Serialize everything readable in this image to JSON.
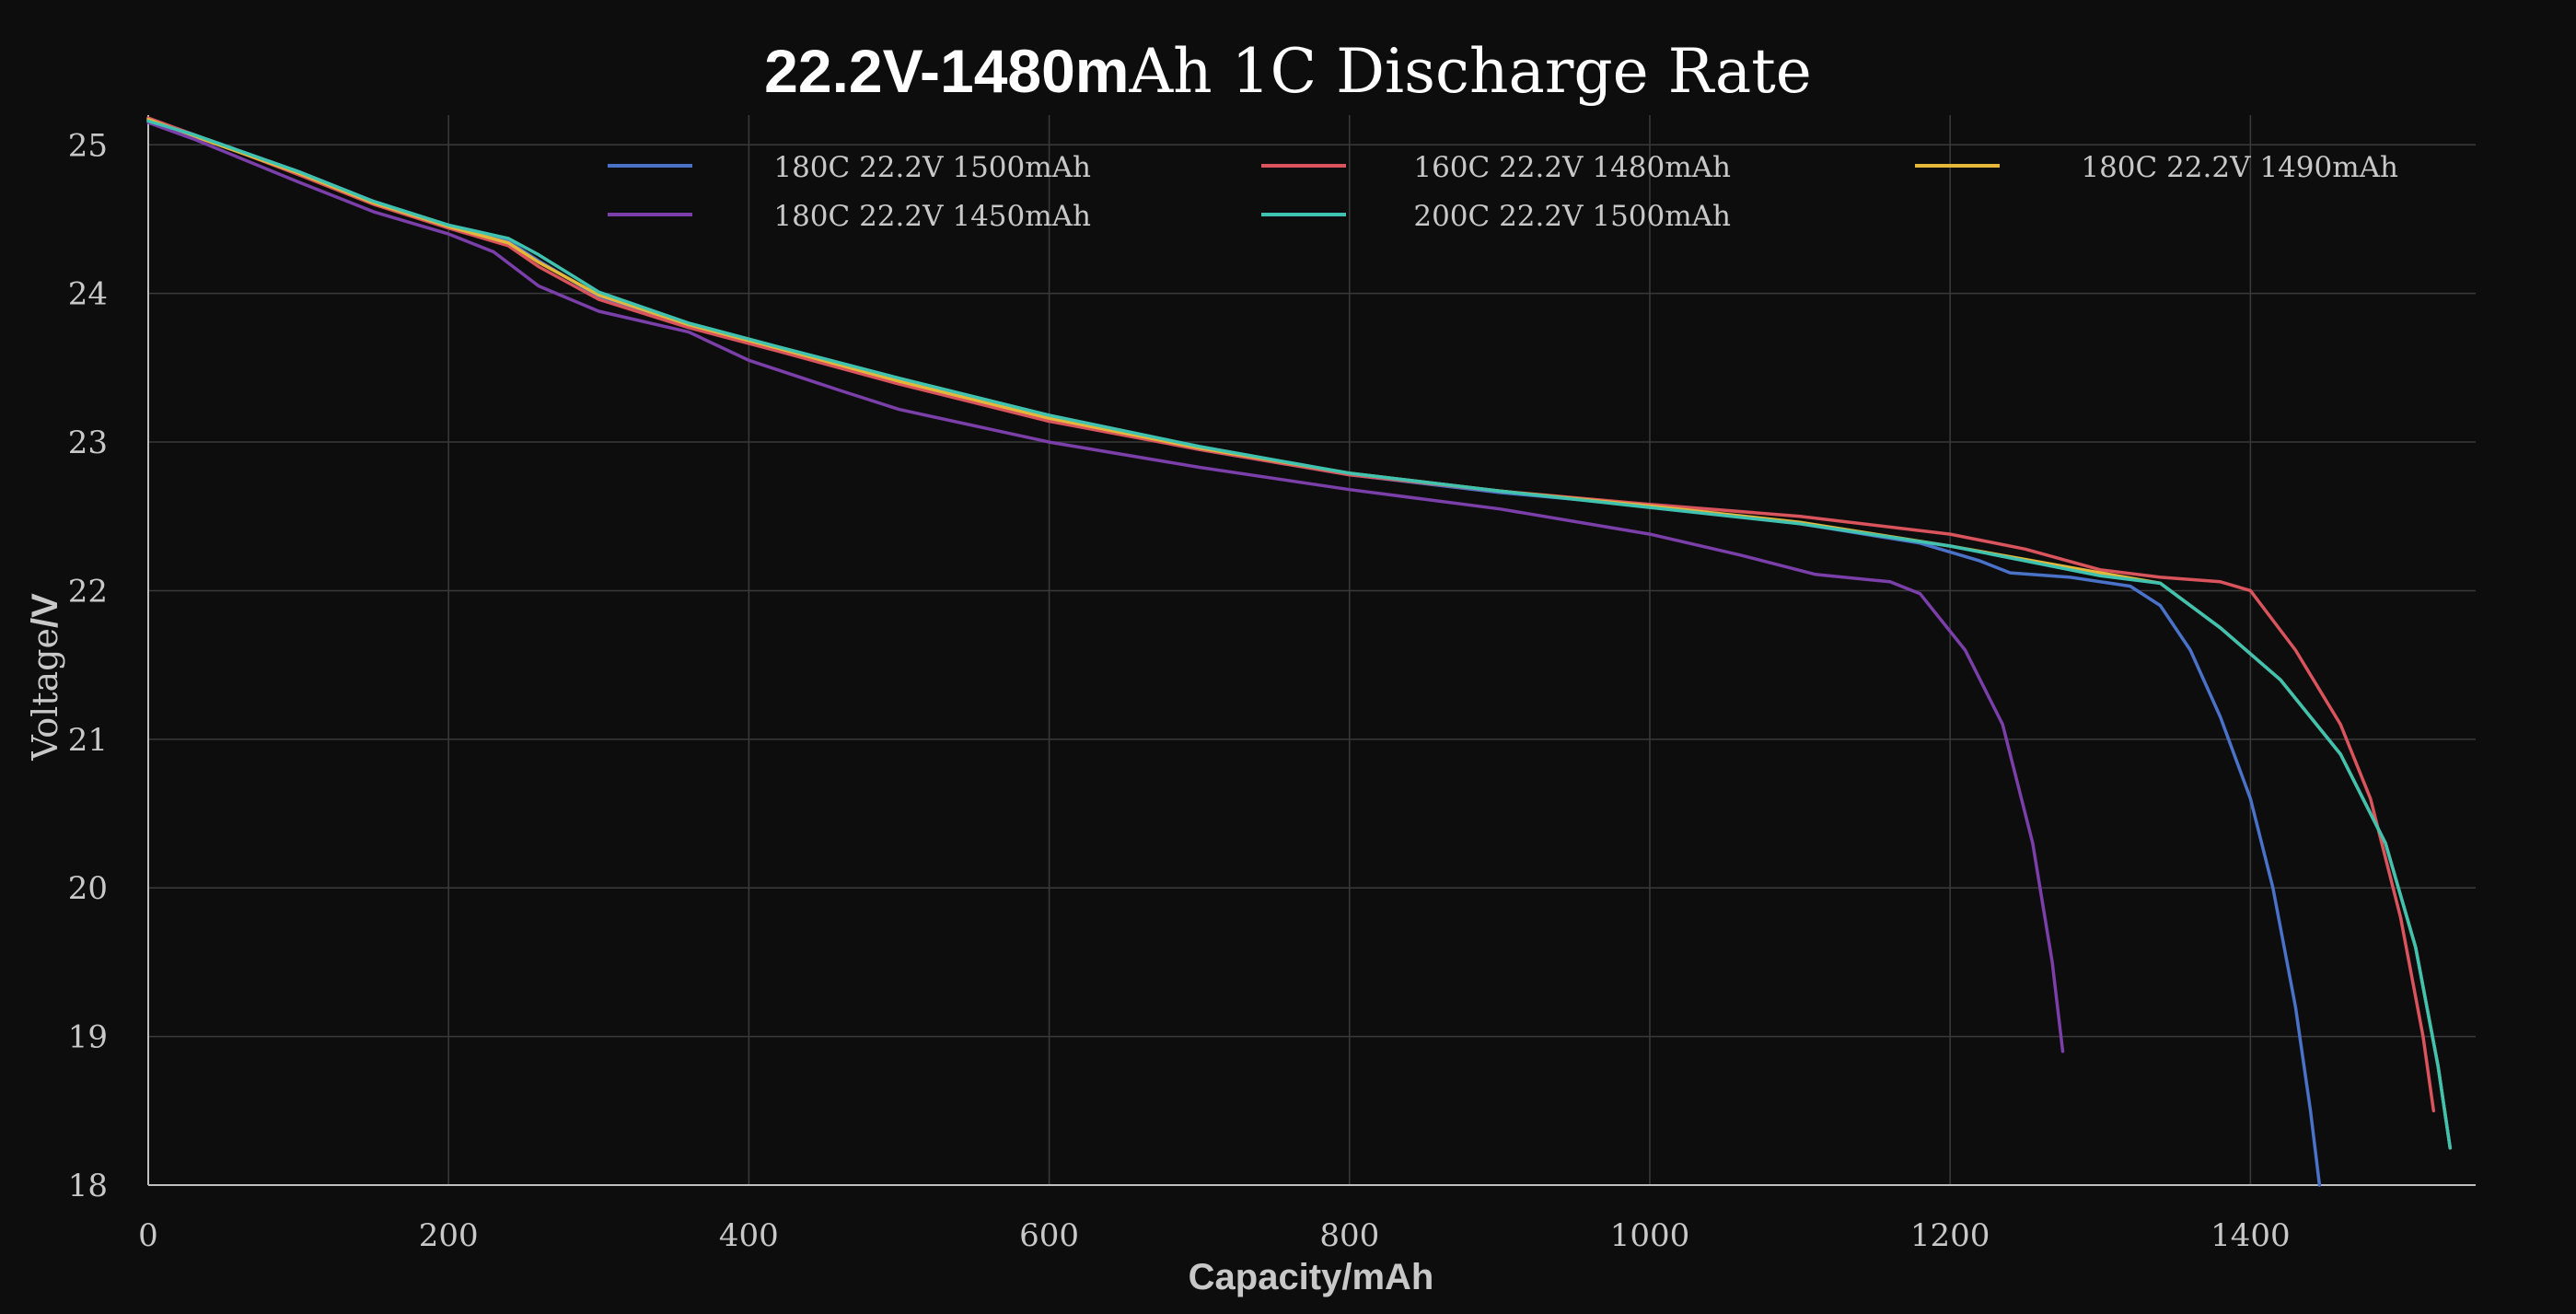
{
  "chart_data": {
    "type": "line",
    "title": {
      "bold": "22.2V-1480m",
      "rest": "Ah 1C Discharge Rate"
    },
    "xlabel": "Capacity/mAh",
    "ylabel": {
      "a": "Voltage",
      "b": "/V"
    },
    "xlim": [
      0,
      1550
    ],
    "ylim": [
      18,
      25.2
    ],
    "xticks": [
      0,
      200,
      400,
      600,
      800,
      1000,
      1200,
      1400
    ],
    "yticks": [
      18,
      19,
      20,
      21,
      22,
      23,
      24,
      25
    ],
    "grid": true,
    "legend_position": "top",
    "series": [
      {
        "name": "180C 22.2V 1500mAh",
        "color": "#4a72c9",
        "points": [
          [
            0,
            25.18
          ],
          [
            30,
            25.07
          ],
          [
            100,
            24.82
          ],
          [
            150,
            24.62
          ],
          [
            200,
            24.45
          ],
          [
            240,
            24.35
          ],
          [
            260,
            24.22
          ],
          [
            300,
            23.98
          ],
          [
            360,
            23.78
          ],
          [
            420,
            23.62
          ],
          [
            500,
            23.4
          ],
          [
            600,
            23.15
          ],
          [
            700,
            22.95
          ],
          [
            800,
            22.78
          ],
          [
            900,
            22.66
          ],
          [
            1000,
            22.57
          ],
          [
            1100,
            22.45
          ],
          [
            1180,
            22.32
          ],
          [
            1220,
            22.2
          ],
          [
            1240,
            22.12
          ],
          [
            1280,
            22.09
          ],
          [
            1320,
            22.03
          ],
          [
            1340,
            21.9
          ],
          [
            1360,
            21.6
          ],
          [
            1380,
            21.15
          ],
          [
            1400,
            20.6
          ],
          [
            1415,
            20.0
          ],
          [
            1430,
            19.2
          ],
          [
            1440,
            18.5
          ],
          [
            1446,
            18.0
          ]
        ]
      },
      {
        "name": "160C 22.2V 1480mAh",
        "color": "#d9545c",
        "points": [
          [
            0,
            25.18
          ],
          [
            30,
            25.07
          ],
          [
            100,
            24.8
          ],
          [
            150,
            24.6
          ],
          [
            200,
            24.44
          ],
          [
            240,
            24.32
          ],
          [
            260,
            24.18
          ],
          [
            300,
            23.96
          ],
          [
            360,
            23.77
          ],
          [
            420,
            23.61
          ],
          [
            500,
            23.39
          ],
          [
            600,
            23.14
          ],
          [
            700,
            22.95
          ],
          [
            800,
            22.78
          ],
          [
            900,
            22.67
          ],
          [
            1000,
            22.58
          ],
          [
            1100,
            22.5
          ],
          [
            1200,
            22.38
          ],
          [
            1250,
            22.28
          ],
          [
            1300,
            22.14
          ],
          [
            1340,
            22.09
          ],
          [
            1380,
            22.06
          ],
          [
            1400,
            22.0
          ],
          [
            1430,
            21.6
          ],
          [
            1460,
            21.1
          ],
          [
            1480,
            20.6
          ],
          [
            1500,
            19.8
          ],
          [
            1515,
            19.0
          ],
          [
            1522,
            18.5
          ]
        ]
      },
      {
        "name": "180C 22.2V 1490mAh",
        "color": "#e5b83a",
        "points": [
          [
            0,
            25.17
          ],
          [
            30,
            25.06
          ],
          [
            100,
            24.81
          ],
          [
            150,
            24.61
          ],
          [
            200,
            24.45
          ],
          [
            240,
            24.34
          ],
          [
            260,
            24.21
          ],
          [
            300,
            23.99
          ],
          [
            360,
            23.79
          ],
          [
            420,
            23.63
          ],
          [
            500,
            23.41
          ],
          [
            600,
            23.16
          ],
          [
            700,
            22.96
          ],
          [
            800,
            22.79
          ],
          [
            900,
            22.67
          ],
          [
            1000,
            22.57
          ],
          [
            1100,
            22.46
          ],
          [
            1200,
            22.3
          ],
          [
            1300,
            22.12
          ],
          [
            1340,
            22.05
          ],
          [
            1380,
            21.75
          ],
          [
            1420,
            21.4
          ],
          [
            1460,
            20.9
          ],
          [
            1490,
            20.3
          ],
          [
            1510,
            19.6
          ],
          [
            1525,
            18.8
          ],
          [
            1533,
            18.25
          ]
        ]
      },
      {
        "name": "180C 22.2V 1450mAh",
        "color": "#7a3fa8",
        "points": [
          [
            0,
            25.15
          ],
          [
            30,
            25.04
          ],
          [
            100,
            24.75
          ],
          [
            150,
            24.55
          ],
          [
            200,
            24.4
          ],
          [
            230,
            24.28
          ],
          [
            260,
            24.05
          ],
          [
            300,
            23.88
          ],
          [
            360,
            23.74
          ],
          [
            400,
            23.55
          ],
          [
            460,
            23.35
          ],
          [
            500,
            23.22
          ],
          [
            600,
            23.0
          ],
          [
            700,
            22.83
          ],
          [
            800,
            22.68
          ],
          [
            900,
            22.55
          ],
          [
            1000,
            22.38
          ],
          [
            1060,
            22.24
          ],
          [
            1110,
            22.11
          ],
          [
            1160,
            22.06
          ],
          [
            1180,
            21.98
          ],
          [
            1210,
            21.6
          ],
          [
            1235,
            21.1
          ],
          [
            1255,
            20.3
          ],
          [
            1268,
            19.5
          ],
          [
            1275,
            18.9
          ]
        ]
      },
      {
        "name": "200C 22.2V 1500mAh",
        "color": "#40c2b0",
        "points": [
          [
            0,
            25.16
          ],
          [
            30,
            25.07
          ],
          [
            100,
            24.82
          ],
          [
            150,
            24.62
          ],
          [
            200,
            24.46
          ],
          [
            240,
            24.37
          ],
          [
            260,
            24.26
          ],
          [
            300,
            24.01
          ],
          [
            360,
            23.8
          ],
          [
            420,
            23.64
          ],
          [
            500,
            23.43
          ],
          [
            600,
            23.18
          ],
          [
            700,
            22.97
          ],
          [
            800,
            22.79
          ],
          [
            900,
            22.67
          ],
          [
            1000,
            22.56
          ],
          [
            1100,
            22.45
          ],
          [
            1200,
            22.3
          ],
          [
            1300,
            22.1
          ],
          [
            1340,
            22.05
          ],
          [
            1380,
            21.75
          ],
          [
            1420,
            21.4
          ],
          [
            1460,
            20.9
          ],
          [
            1490,
            20.3
          ],
          [
            1510,
            19.6
          ],
          [
            1525,
            18.8
          ],
          [
            1533,
            18.25
          ]
        ]
      }
    ],
    "legend_rows": [
      [
        0,
        1,
        2
      ],
      [
        3,
        4
      ]
    ]
  }
}
